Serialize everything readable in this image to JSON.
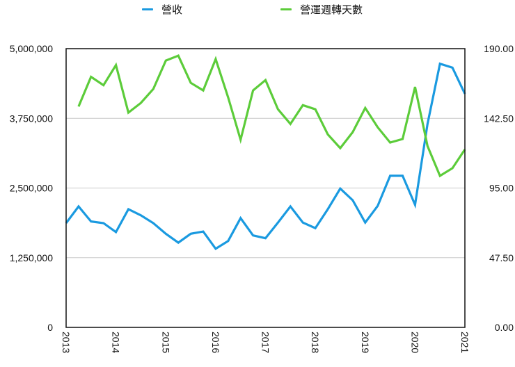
{
  "chart_data": {
    "type": "line",
    "title": "",
    "legend_position": "top",
    "grid": true,
    "x_ticks": [
      "2013",
      "2014",
      "2015",
      "2016",
      "2017",
      "2018",
      "2019",
      "2020",
      "2021"
    ],
    "left_axis": {
      "ticks": [
        "0",
        "1,250,000",
        "2,500,000",
        "3,750,000",
        "5,000,000"
      ],
      "range": [
        0,
        5000000
      ]
    },
    "right_axis": {
      "ticks": [
        "0.00",
        "47.50",
        "95.00",
        "142.50",
        "190.00"
      ],
      "range": [
        0,
        190
      ]
    },
    "x_quarters": [
      "2013Q1",
      "2013Q2",
      "2013Q3",
      "2013Q4",
      "2014Q1",
      "2014Q2",
      "2014Q3",
      "2014Q4",
      "2015Q1",
      "2015Q2",
      "2015Q3",
      "2015Q4",
      "2016Q1",
      "2016Q2",
      "2016Q3",
      "2016Q4",
      "2017Q1",
      "2017Q2",
      "2017Q3",
      "2017Q4",
      "2018Q1",
      "2018Q2",
      "2018Q3",
      "2018Q4",
      "2019Q1",
      "2019Q2",
      "2019Q3",
      "2019Q4",
      "2020Q1",
      "2020Q2",
      "2020Q3",
      "2020Q4",
      "2021Q1"
    ],
    "series": [
      {
        "name": "營收",
        "axis": "left",
        "color": "#1a9ae0",
        "values": [
          1870000,
          2170000,
          1900000,
          1870000,
          1710000,
          2120000,
          2010000,
          1870000,
          1680000,
          1520000,
          1680000,
          1720000,
          1410000,
          1550000,
          1960000,
          1650000,
          1600000,
          1880000,
          2170000,
          1880000,
          1780000,
          2120000,
          2490000,
          2280000,
          1880000,
          2180000,
          2720000,
          2720000,
          2200000,
          3650000,
          4730000,
          4660000,
          4190000
        ]
      },
      {
        "name": "營運週轉天數",
        "axis": "right",
        "color": "#5ccc3a",
        "values": [
          null,
          150.6,
          170.8,
          165.1,
          178.8,
          146.4,
          153.0,
          162.5,
          181.9,
          185.2,
          166.7,
          161.5,
          182.9,
          156.8,
          127.9,
          161.5,
          168.6,
          148.7,
          138.7,
          151.5,
          148.7,
          131.6,
          122.2,
          133.1,
          149.6,
          136.4,
          126.0,
          128.4,
          163.9,
          123.6,
          103.3,
          108.5,
          121.3
        ]
      }
    ]
  },
  "legend": [
    {
      "label": "營收",
      "color": "#1a9ae0"
    },
    {
      "label": "營運週轉天數",
      "color": "#5ccc3a"
    }
  ]
}
